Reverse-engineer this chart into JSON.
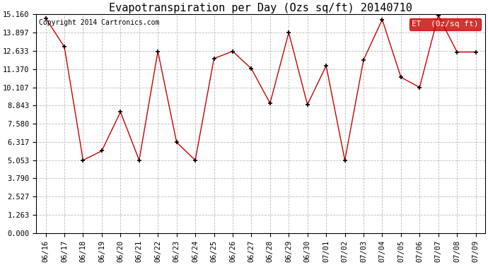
{
  "title": "Evapotranspiration per Day (Ozs sq/ft) 20140710",
  "copyright": "Copyright 2014 Cartronics.com",
  "legend_label": "ET  (0z/sq ft)",
  "x_labels": [
    "06/16",
    "06/17",
    "06/18",
    "06/19",
    "06/20",
    "06/21",
    "06/22",
    "06/23",
    "06/24",
    "06/25",
    "06/26",
    "06/27",
    "06/28",
    "06/29",
    "06/30",
    "07/01",
    "07/02",
    "07/03",
    "07/04",
    "07/05",
    "07/06",
    "07/07",
    "07/08",
    "07/09"
  ],
  "y_values": [
    14.9,
    12.9,
    5.05,
    5.7,
    8.4,
    5.05,
    12.6,
    6.3,
    5.05,
    12.1,
    12.6,
    11.4,
    9.0,
    13.9,
    8.9,
    11.6,
    5.05,
    12.0,
    14.8,
    10.8,
    10.1,
    15.1,
    12.55,
    12.55
  ],
  "y_ticks": [
    0.0,
    1.263,
    2.527,
    3.79,
    5.053,
    6.317,
    7.58,
    8.843,
    10.107,
    11.37,
    12.633,
    13.897,
    15.16
  ],
  "ylim": [
    0.0,
    15.16
  ],
  "line_color": "#cc0000",
  "marker_color": "#000000",
  "bg_color": "#ffffff",
  "grid_color": "#bbbbbb",
  "legend_bg": "#cc0000",
  "legend_text_color": "#ffffff",
  "title_fontsize": 11,
  "copyright_fontsize": 7,
  "tick_fontsize": 7.5
}
